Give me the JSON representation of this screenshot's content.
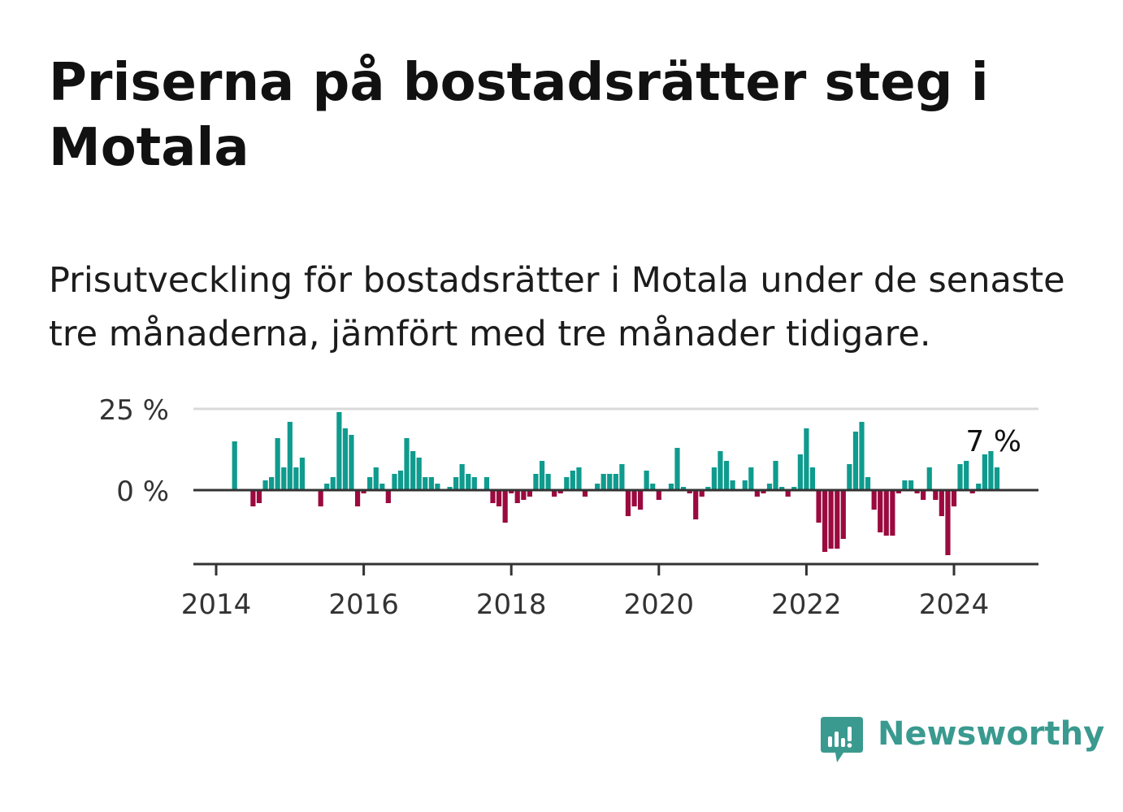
{
  "title": "Priserna på bostadsrätter steg i Motala",
  "subtitle": "Prisutveckling för bostadsrätter i Motala under de senaste tre månaderna, jämfört med tre månader tidigare.",
  "brand": {
    "name": "Newsworthy",
    "color": "#3a9a8f"
  },
  "colors": {
    "positive": "#0f9b8e",
    "negative": "#9b0a3f",
    "axis": "#333333",
    "grid": "#d9d9d9"
  },
  "chart_data": {
    "type": "bar",
    "ytick_labels": [
      "25 %",
      "0 %"
    ],
    "yticks": [
      25,
      0
    ],
    "ylim": [
      -23,
      25
    ],
    "xticks": [
      2014,
      2016,
      2018,
      2020,
      2022,
      2024
    ],
    "xtick_labels": [
      "2014",
      "2016",
      "2018",
      "2020",
      "2022",
      "2024"
    ],
    "xlim": [
      2013.7,
      2025.2
    ],
    "grid": true,
    "last_value_label": "7 %",
    "x": [
      2014.25,
      2014.333,
      2014.417,
      2014.5,
      2014.583,
      2014.667,
      2014.75,
      2014.833,
      2014.917,
      2015.0,
      2015.083,
      2015.167,
      2015.25,
      2015.333,
      2015.417,
      2015.5,
      2015.583,
      2015.667,
      2015.75,
      2015.833,
      2015.917,
      2016.0,
      2016.083,
      2016.167,
      2016.25,
      2016.333,
      2016.417,
      2016.5,
      2016.583,
      2016.667,
      2016.75,
      2016.833,
      2016.917,
      2017.0,
      2017.083,
      2017.167,
      2017.25,
      2017.333,
      2017.417,
      2017.5,
      2017.583,
      2017.667,
      2017.75,
      2017.833,
      2017.917,
      2018.0,
      2018.083,
      2018.167,
      2018.25,
      2018.333,
      2018.417,
      2018.5,
      2018.583,
      2018.667,
      2018.75,
      2018.833,
      2018.917,
      2019.0,
      2019.083,
      2019.167,
      2019.25,
      2019.333,
      2019.417,
      2019.5,
      2019.583,
      2019.667,
      2019.75,
      2019.833,
      2019.917,
      2020.0,
      2020.083,
      2020.167,
      2020.25,
      2020.333,
      2020.417,
      2020.5,
      2020.583,
      2020.667,
      2020.75,
      2020.833,
      2020.917,
      2021.0,
      2021.083,
      2021.167,
      2021.25,
      2021.333,
      2021.417,
      2021.5,
      2021.583,
      2021.667,
      2021.75,
      2021.833,
      2021.917,
      2022.0,
      2022.083,
      2022.167,
      2022.25,
      2022.333,
      2022.417,
      2022.5,
      2022.583,
      2022.667,
      2022.75,
      2022.833,
      2022.917,
      2023.0,
      2023.083,
      2023.167,
      2023.25,
      2023.333,
      2023.417,
      2023.5,
      2023.583,
      2023.667,
      2023.75,
      2023.833,
      2023.917,
      2024.0,
      2024.083,
      2024.167,
      2024.25,
      2024.333,
      2024.417,
      2024.5,
      2024.583
    ],
    "values": [
      15,
      0,
      0,
      -5,
      -4,
      3,
      4,
      16,
      7,
      21,
      7,
      10,
      0,
      0,
      -5,
      2,
      4,
      24,
      19,
      17,
      -5,
      -1,
      4,
      7,
      2,
      -4,
      5,
      6,
      16,
      12,
      10,
      4,
      4,
      2,
      0,
      1,
      4,
      8,
      5,
      4,
      0,
      4,
      -4,
      -5,
      -10,
      -1,
      -4,
      -3,
      -2,
      5,
      9,
      5,
      -2,
      -1,
      4,
      6,
      7,
      -2,
      0,
      2,
      5,
      5,
      5,
      8,
      -8,
      -5,
      -6,
      6,
      2,
      -3,
      0,
      2,
      13,
      1,
      -1,
      -9,
      -2,
      1,
      7,
      12,
      9,
      3,
      0,
      3,
      7,
      -2,
      -1,
      2,
      9,
      1,
      -2,
      1,
      11,
      19,
      7,
      -10,
      -19,
      -18,
      -18,
      -15,
      8,
      18,
      21,
      4,
      -6,
      -13,
      -14,
      -14,
      -1,
      3,
      3,
      -1,
      -3,
      7,
      -3,
      -8,
      -20,
      -5,
      8,
      9,
      -1,
      2,
      11,
      12,
      7
    ]
  }
}
